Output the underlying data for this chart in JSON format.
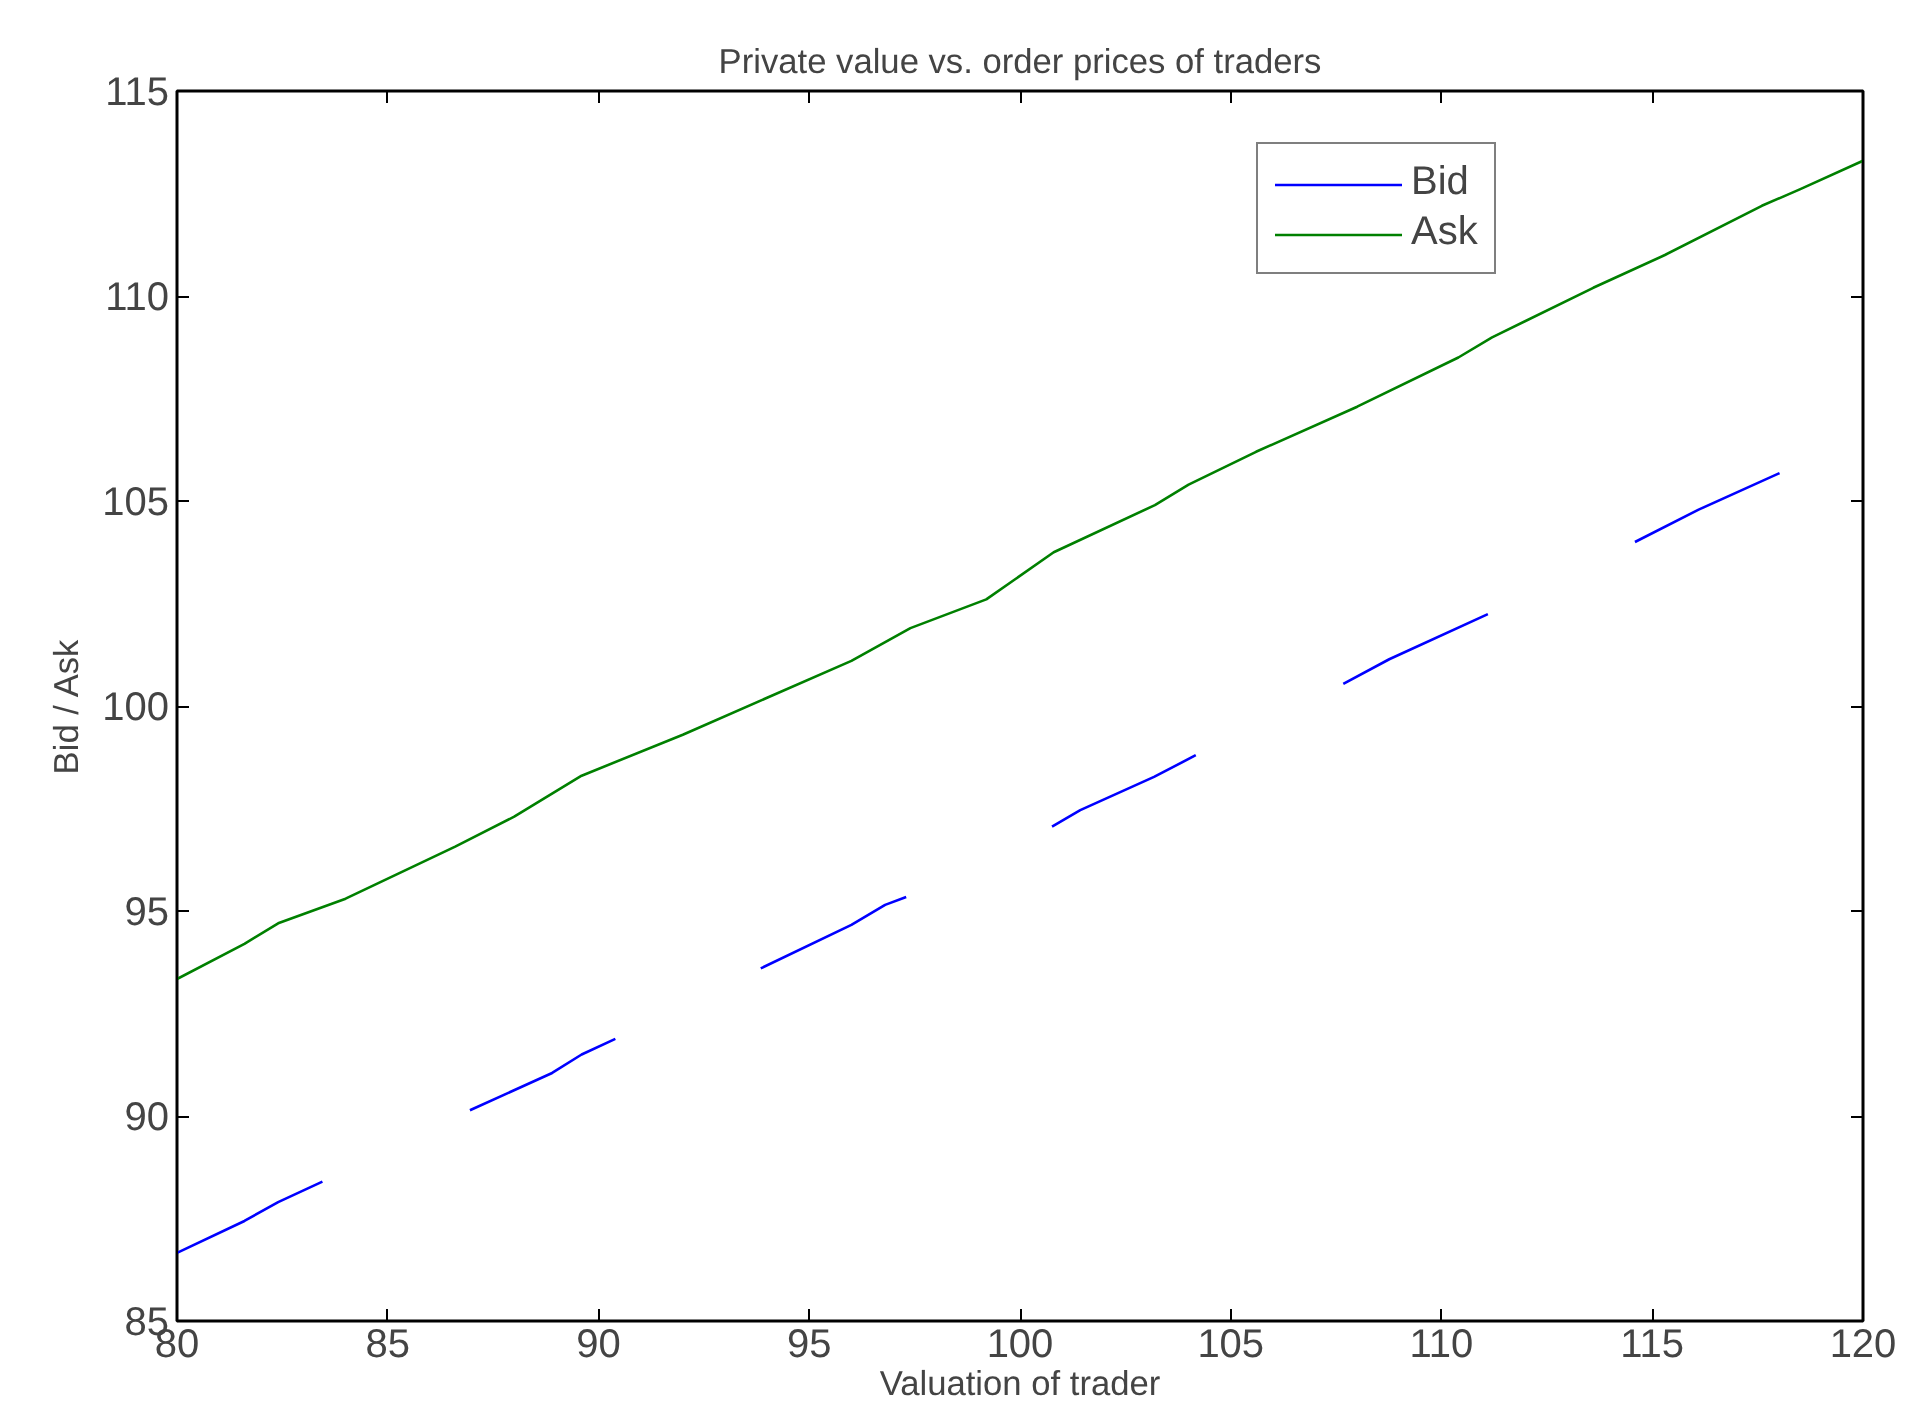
{
  "chart_data": {
    "type": "line",
    "title": "Private value vs. order prices of traders",
    "xlabel": "Valuation of trader",
    "ylabel": "Bid / Ask",
    "xlim": [
      80,
      120
    ],
    "ylim": [
      85,
      115
    ],
    "xticks": [
      80,
      85,
      90,
      95,
      100,
      105,
      110,
      115,
      120
    ],
    "yticks": [
      85,
      90,
      95,
      100,
      105,
      110,
      115
    ],
    "grid": false,
    "legend": "top right",
    "marker": "none",
    "line_style": "solid",
    "series": [
      {
        "name": "Bid",
        "color": "#0000ff",
        "x": [
          80,
          81.6,
          82.4,
          83.45,
          85.2,
          86.95,
          88.9,
          89.6,
          90.4,
          92.1,
          93.85,
          96.0,
          96.8,
          97.3,
          99.0,
          100.76,
          101.43,
          103.18,
          104.17,
          105.9,
          107.67,
          108.76,
          111.1,
          112.8,
          114.59,
          116.1,
          118.02
        ],
        "values": [
          86.66,
          87.44,
          87.9,
          88.4,
          null,
          90.14,
          91.05,
          91.5,
          91.88,
          null,
          93.6,
          94.66,
          95.15,
          95.34,
          null,
          97.06,
          97.46,
          98.27,
          98.8,
          null,
          100.54,
          101.14,
          102.24,
          null,
          104.0,
          104.79,
          105.68
        ]
      },
      {
        "name": "Ask",
        "color": "#008000",
        "x": [
          80,
          81.6,
          82.4,
          84,
          86.6,
          88,
          89.6,
          92,
          94,
          96,
          97.4,
          99.2,
          100.8,
          103.2,
          104.0,
          105.6,
          108.0,
          110.4,
          111.2,
          113.6,
          115.3,
          117.6,
          118.5,
          120
        ],
        "values": [
          93.34,
          94.2,
          94.7,
          95.3,
          96.57,
          97.3,
          98.3,
          99.3,
          100.2,
          101.1,
          101.9,
          102.6,
          103.75,
          104.9,
          105.4,
          106.2,
          107.3,
          108.5,
          108.99,
          110.2,
          111.0,
          112.2,
          112.6,
          113.3
        ]
      }
    ]
  }
}
